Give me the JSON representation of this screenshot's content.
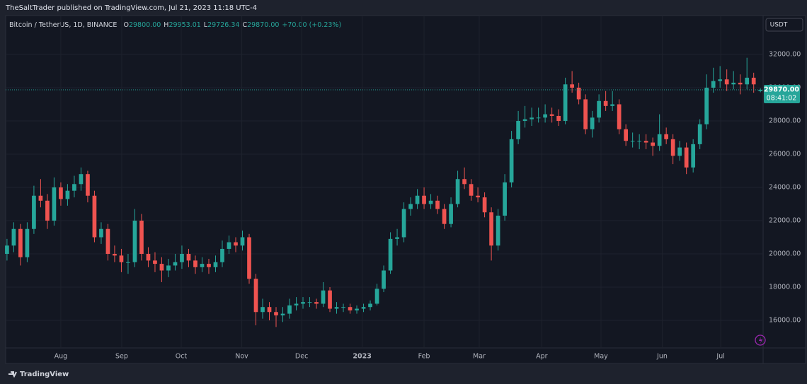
{
  "header": "TheSaltTrader published on TradingView.com, Jul 21, 2023 11:18 UTC-4",
  "footer": "TradingView",
  "chart_data": {
    "type": "candlestick",
    "title": "Bitcoin / TetherUS, 1D, BINANCE",
    "legend": [
      {
        "key": "O",
        "value": "29800.00"
      },
      {
        "key": "H",
        "value": "29953.01"
      },
      {
        "key": "L",
        "value": "29726.34"
      },
      {
        "key": "C",
        "value": "29870.00"
      }
    ],
    "change": "+70.00 (+0.23%)",
    "currency": "USDT",
    "last_price": {
      "value": 29870,
      "label": "29870.00"
    },
    "countdown": "08:41:02",
    "up_color": "#26a69a",
    "down_color": "#ef5350",
    "grid": true,
    "ohlc": [
      [
        20000,
        20900,
        19600,
        20500
      ],
      [
        20500,
        21900,
        20100,
        21500
      ],
      [
        21500,
        21800,
        19300,
        19800
      ],
      [
        19800,
        21900,
        19500,
        21500
      ],
      [
        21500,
        24100,
        21200,
        23500
      ],
      [
        23500,
        24500,
        22800,
        23200
      ],
      [
        23200,
        23600,
        21500,
        22000
      ],
      [
        22000,
        24600,
        21700,
        24000
      ],
      [
        24000,
        24300,
        22900,
        23300
      ],
      [
        23300,
        24200,
        22900,
        23800
      ],
      [
        23800,
        24700,
        23400,
        24200
      ],
      [
        24200,
        25200,
        23800,
        24800
      ],
      [
        24800,
        25000,
        23100,
        23500
      ],
      [
        23500,
        23800,
        20700,
        21000
      ],
      [
        21000,
        21900,
        20600,
        21500
      ],
      [
        21500,
        21800,
        19600,
        20000
      ],
      [
        20000,
        20500,
        19500,
        19900
      ],
      [
        19900,
        20300,
        18900,
        19500
      ],
      [
        19500,
        20000,
        18800,
        19500
      ],
      [
        19500,
        22700,
        19200,
        22000
      ],
      [
        22000,
        22400,
        19600,
        20000
      ],
      [
        20000,
        20400,
        19200,
        19600
      ],
      [
        19600,
        20100,
        18900,
        19400
      ],
      [
        19400,
        19800,
        18300,
        19000
      ],
      [
        19000,
        19700,
        18600,
        19300
      ],
      [
        19300,
        20000,
        19000,
        19500
      ],
      [
        19500,
        20500,
        19100,
        20000
      ],
      [
        20000,
        20300,
        19200,
        19600
      ],
      [
        19600,
        19900,
        18800,
        19200
      ],
      [
        19200,
        19800,
        18900,
        19400
      ],
      [
        19400,
        19700,
        18800,
        19200
      ],
      [
        19200,
        19900,
        18900,
        19500
      ],
      [
        19500,
        20800,
        19200,
        20300
      ],
      [
        20300,
        21100,
        20000,
        20700
      ],
      [
        20700,
        21000,
        20100,
        20500
      ],
      [
        20500,
        21400,
        20200,
        21000
      ],
      [
        21000,
        21200,
        18200,
        18500
      ],
      [
        18500,
        18800,
        15700,
        16500
      ],
      [
        16500,
        17300,
        16100,
        16800
      ],
      [
        16800,
        17100,
        16000,
        16500
      ],
      [
        16500,
        16800,
        15600,
        16300
      ],
      [
        16300,
        16800,
        15900,
        16400
      ],
      [
        16400,
        17300,
        16100,
        16900
      ],
      [
        16900,
        17400,
        16600,
        17000
      ],
      [
        17000,
        17400,
        16700,
        17100
      ],
      [
        17100,
        17400,
        16800,
        17100
      ],
      [
        17100,
        17300,
        16700,
        17000
      ],
      [
        17000,
        18300,
        16800,
        17800
      ],
      [
        17800,
        18000,
        16500,
        16700
      ],
      [
        16700,
        17100,
        16400,
        16800
      ],
      [
        16800,
        17000,
        16500,
        16800
      ],
      [
        16800,
        17000,
        16400,
        16600
      ],
      [
        16600,
        16900,
        16400,
        16700
      ],
      [
        16700,
        17000,
        16500,
        16800
      ],
      [
        16800,
        17200,
        16600,
        17000
      ],
      [
        17000,
        18200,
        16900,
        17900
      ],
      [
        17900,
        19300,
        17700,
        19000
      ],
      [
        19000,
        21300,
        18800,
        20900
      ],
      [
        20900,
        21500,
        20500,
        21000
      ],
      [
        21000,
        23100,
        20700,
        22700
      ],
      [
        22700,
        23400,
        22300,
        23000
      ],
      [
        23000,
        23900,
        22700,
        23500
      ],
      [
        23500,
        24000,
        22700,
        23000
      ],
      [
        23000,
        23600,
        22700,
        23200
      ],
      [
        23200,
        23500,
        22400,
        22700
      ],
      [
        22700,
        23000,
        21500,
        21800
      ],
      [
        21800,
        23400,
        21600,
        23000
      ],
      [
        23000,
        25000,
        22800,
        24500
      ],
      [
        24500,
        25200,
        23900,
        24200
      ],
      [
        24200,
        24500,
        23200,
        23500
      ],
      [
        23500,
        24000,
        23100,
        23400
      ],
      [
        23400,
        23700,
        22200,
        22500
      ],
      [
        22500,
        22800,
        19600,
        20500
      ],
      [
        20500,
        22700,
        20200,
        22300
      ],
      [
        22300,
        24800,
        22000,
        24300
      ],
      [
        24300,
        27400,
        24000,
        26900
      ],
      [
        26900,
        28600,
        26600,
        28000
      ],
      [
        28000,
        28900,
        27600,
        28100
      ],
      [
        28100,
        28800,
        27700,
        28200
      ],
      [
        28200,
        28800,
        27900,
        28200
      ],
      [
        28200,
        29000,
        27900,
        28400
      ],
      [
        28400,
        28800,
        27900,
        28300
      ],
      [
        28300,
        28700,
        27700,
        28000
      ],
      [
        28000,
        30600,
        27800,
        30200
      ],
      [
        30200,
        31000,
        29700,
        30000
      ],
      [
        30000,
        30300,
        29000,
        29300
      ],
      [
        29300,
        29600,
        27200,
        27500
      ],
      [
        27500,
        28600,
        27000,
        28200
      ],
      [
        28200,
        29600,
        27900,
        29200
      ],
      [
        29200,
        29800,
        28600,
        28900
      ],
      [
        28900,
        29800,
        28600,
        29000
      ],
      [
        29000,
        29300,
        27200,
        27500
      ],
      [
        27500,
        27800,
        26500,
        26800
      ],
      [
        26800,
        27300,
        26400,
        26800
      ],
      [
        26800,
        27200,
        26300,
        26800
      ],
      [
        26800,
        27200,
        26300,
        26700
      ],
      [
        26700,
        27000,
        25900,
        26500
      ],
      [
        26500,
        28400,
        26200,
        27200
      ],
      [
        27200,
        27600,
        26600,
        26900
      ],
      [
        26900,
        27200,
        25400,
        25900
      ],
      [
        25900,
        26800,
        25600,
        26400
      ],
      [
        26400,
        26700,
        24800,
        25200
      ],
      [
        25200,
        26900,
        24900,
        26600
      ],
      [
        26600,
        28100,
        26300,
        27800
      ],
      [
        27800,
        30800,
        27500,
        30000
      ],
      [
        30000,
        31200,
        29700,
        30400
      ],
      [
        30400,
        31300,
        30000,
        30500
      ],
      [
        30500,
        31100,
        29800,
        30200
      ],
      [
        30200,
        31000,
        29900,
        30300
      ],
      [
        30300,
        30800,
        29600,
        30200
      ],
      [
        30200,
        31800,
        29900,
        30600
      ],
      [
        30600,
        30900,
        29700,
        30200
      ],
      [
        29800,
        29953.01,
        29726.34,
        29870
      ]
    ],
    "xlim": [
      -0.2,
      112.4
    ],
    "xticks": [
      {
        "value": 8,
        "label": "Aug"
      },
      {
        "value": 17.05,
        "label": "Sep"
      },
      {
        "value": 25.9,
        "label": "Oct"
      },
      {
        "value": 34.9,
        "label": "Nov"
      },
      {
        "value": 43.8,
        "label": "Dec"
      },
      {
        "value": 52.8,
        "label": "2023"
      },
      {
        "value": 62,
        "label": "Feb"
      },
      {
        "value": 70.2,
        "label": "Mar"
      },
      {
        "value": 79.5,
        "label": "Apr"
      },
      {
        "value": 88.3,
        "label": "May"
      },
      {
        "value": 97.4,
        "label": "Jun"
      },
      {
        "value": 106.1,
        "label": "Jul"
      }
    ],
    "ylim": [
      14340,
      34340
    ],
    "yticks": [
      {
        "value": 16000,
        "label": "16000.00"
      },
      {
        "value": 18000,
        "label": "18000.00"
      },
      {
        "value": 20000,
        "label": "20000.00"
      },
      {
        "value": 22000,
        "label": "22000.00"
      },
      {
        "value": 24000,
        "label": "24000.00"
      },
      {
        "value": 26000,
        "label": "26000.00"
      },
      {
        "value": 28000,
        "label": "28000.00"
      },
      {
        "value": 30000,
        "label": "30000.00"
      },
      {
        "value": 32000,
        "label": "32000.00"
      }
    ]
  }
}
